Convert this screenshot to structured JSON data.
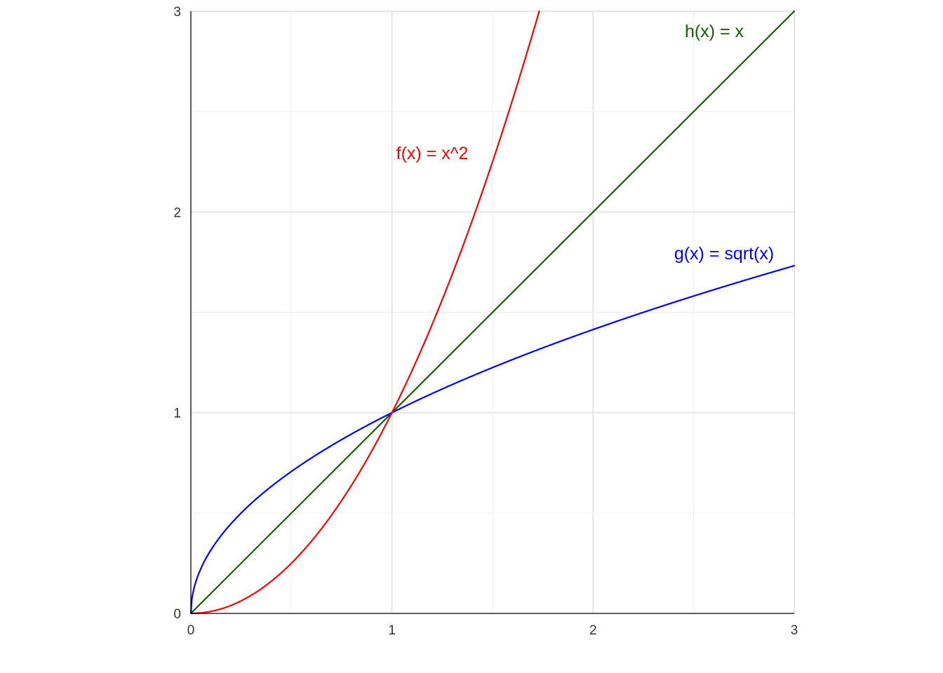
{
  "chart_data": {
    "type": "line",
    "xlim": [
      0,
      3
    ],
    "ylim": [
      0,
      3
    ],
    "x_ticks": [
      "0",
      "1",
      "2",
      "3"
    ],
    "y_ticks": [
      "0",
      "1",
      "2",
      "3"
    ],
    "grid": true,
    "legend": "none",
    "series": [
      {
        "name": "f(x) = x^2",
        "color": "#ff0000",
        "x": [
          0,
          0.25,
          0.5,
          0.75,
          1,
          1.25,
          1.5,
          1.732
        ],
        "y": [
          0,
          0.0625,
          0.25,
          0.5625,
          1,
          1.5625,
          2.25,
          3
        ]
      },
      {
        "name": "g(x) = sqrt(x)",
        "color": "#0000ff",
        "x": [
          0,
          0.25,
          0.5,
          1,
          1.5,
          2,
          2.5,
          3
        ],
        "y": [
          0,
          0.5,
          0.707,
          1,
          1.225,
          1.414,
          1.581,
          1.732
        ]
      },
      {
        "name": "h(x) = x",
        "color": "#135f00",
        "x": [
          0,
          3
        ],
        "y": [
          0,
          3
        ]
      }
    ]
  }
}
